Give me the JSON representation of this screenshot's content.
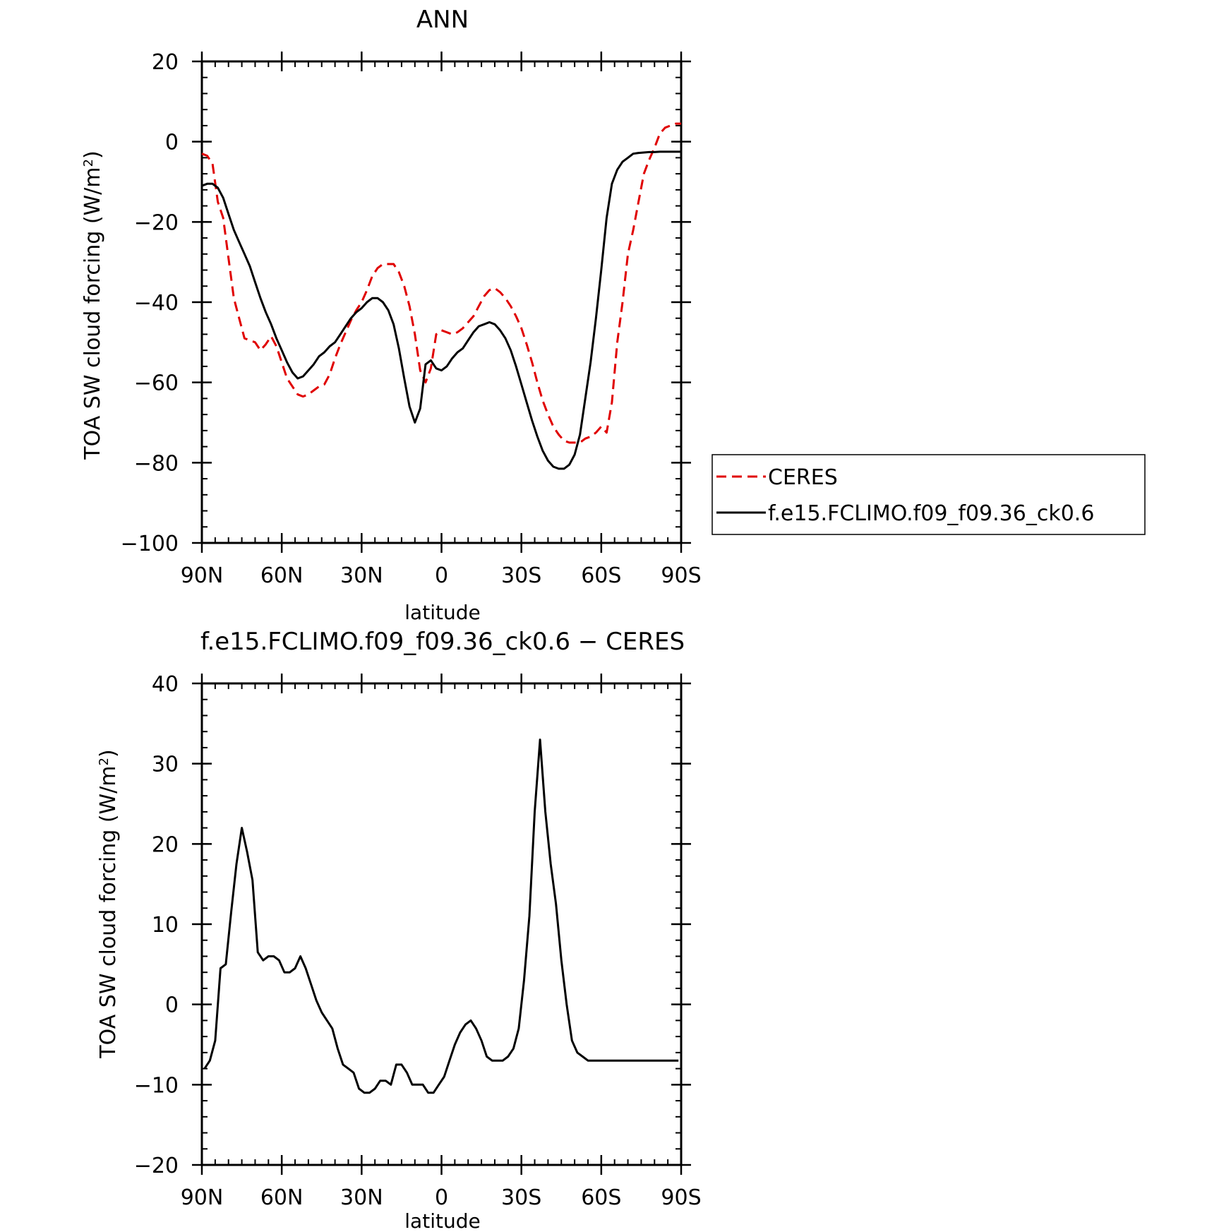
{
  "colors": {
    "ceres": "#e00000",
    "model": "#000000",
    "axis": "#000000"
  },
  "chart_data": [
    {
      "type": "line",
      "title": "ANN",
      "xlabel": "latitude",
      "ylabel": "TOA SW cloud forcing (W/m",
      "ylabel_sup": "2",
      "ylabel_end": ")",
      "xlim": [
        90,
        -90
      ],
      "ylim": [
        -100,
        20
      ],
      "xticks": [
        90,
        60,
        30,
        0,
        -30,
        -60,
        -90
      ],
      "xtick_labels": [
        "90N",
        "60N",
        "30N",
        "0",
        "30S",
        "60S",
        "90S"
      ],
      "yticks": [
        -100,
        -80,
        -60,
        -40,
        -20,
        0,
        20
      ],
      "ytick_labels": [
        "−100",
        "−80",
        "−60",
        "−40",
        "−20",
        "0",
        "20"
      ],
      "legend_position": "right",
      "series": [
        {
          "name": "CERES",
          "style": "dashed",
          "color": "#e00000",
          "x": [
            90,
            88,
            86,
            84,
            82,
            80,
            78,
            76,
            74,
            72,
            70,
            68,
            66,
            64,
            62,
            60,
            58,
            56,
            54,
            52,
            50,
            48,
            46,
            44,
            42,
            40,
            38,
            36,
            34,
            32,
            30,
            28,
            26,
            24,
            22,
            20,
            18,
            16,
            14,
            12,
            10,
            8,
            6,
            4,
            2,
            0,
            -2,
            -4,
            -6,
            -8,
            -10,
            -12,
            -14,
            -16,
            -18,
            -20,
            -22,
            -24,
            -26,
            -28,
            -30,
            -32,
            -34,
            -36,
            -38,
            -40,
            -42,
            -44,
            -46,
            -48,
            -50,
            -52,
            -54,
            -56,
            -58,
            -60,
            -62,
            -64,
            -66,
            -68,
            -70,
            -72,
            -74,
            -76,
            -78,
            -80,
            -82,
            -84,
            -86,
            -88,
            -90
          ],
          "values": [
            -3,
            -3.5,
            -5.5,
            -15,
            -19,
            -29,
            -39,
            -44,
            -49,
            -49.5,
            -50,
            -52,
            -50.5,
            -48.5,
            -51,
            -55,
            -59,
            -61,
            -63,
            -63.5,
            -63,
            -62,
            -61,
            -60.5,
            -58,
            -54,
            -50.5,
            -47.5,
            -44.5,
            -42,
            -40,
            -37,
            -33.5,
            -31.5,
            -30.5,
            -30.5,
            -30.5,
            -32.5,
            -36,
            -41,
            -48,
            -57,
            -60,
            -56.5,
            -48,
            -47,
            -47.5,
            -48,
            -47.5,
            -46.5,
            -45,
            -43.5,
            -41,
            -38.5,
            -37,
            -36.5,
            -37.5,
            -39,
            -41,
            -43.5,
            -46.5,
            -50.5,
            -55,
            -60,
            -64.5,
            -68,
            -71,
            -73,
            -74.5,
            -75,
            -75,
            -75,
            -74,
            -73.5,
            -72.5,
            -71,
            -72.5,
            -65,
            -50,
            -40,
            -28,
            -22,
            -15,
            -8,
            -4.5,
            -1.5,
            2,
            3.5,
            4,
            4.5,
            4.5
          ]
        },
        {
          "name": "f.e15.FCLIMO.f09_f09.36_ck0.6",
          "style": "solid",
          "color": "#000000",
          "x": [
            90,
            88,
            86,
            84,
            82,
            80,
            78,
            76,
            74,
            72,
            70,
            68,
            66,
            64,
            62,
            60,
            58,
            56,
            54,
            52,
            50,
            48,
            46,
            44,
            42,
            40,
            38,
            36,
            34,
            32,
            30,
            28,
            26,
            24,
            22,
            20,
            18,
            16,
            14,
            12,
            10,
            8,
            6,
            4,
            2,
            0,
            -2,
            -4,
            -6,
            -8,
            -10,
            -12,
            -14,
            -16,
            -18,
            -20,
            -22,
            -24,
            -26,
            -28,
            -30,
            -32,
            -34,
            -36,
            -38,
            -40,
            -42,
            -44,
            -46,
            -48,
            -50,
            -52,
            -54,
            -56,
            -58,
            -60,
            -62,
            -64,
            -66,
            -68,
            -70,
            -72,
            -74,
            -76,
            -78,
            -80,
            -82,
            -84,
            -86,
            -88,
            -90
          ],
          "values": [
            -11,
            -10.5,
            -10.5,
            -11.5,
            -14,
            -18,
            -22,
            -25,
            -28,
            -31,
            -35,
            -39,
            -42.5,
            -45.5,
            -49,
            -52,
            -55,
            -57.5,
            -59,
            -58.5,
            -57,
            -55.5,
            -53.5,
            -52.5,
            -51,
            -50,
            -48,
            -46,
            -44,
            -42.5,
            -41.5,
            -40,
            -39,
            -39,
            -40,
            -42,
            -45.5,
            -51.5,
            -59,
            -66,
            -70,
            -66.5,
            -55.5,
            -54.5,
            -56.5,
            -57,
            -56,
            -54,
            -52.5,
            -51.5,
            -49.5,
            -47.5,
            -46,
            -45.5,
            -45,
            -45.5,
            -47,
            -49,
            -52,
            -56,
            -60.5,
            -65,
            -69.5,
            -73.5,
            -77,
            -79.5,
            -81,
            -81.5,
            -81.5,
            -80.5,
            -78,
            -73,
            -64,
            -55,
            -44,
            -32,
            -19,
            -10.5,
            -7,
            -5,
            -4,
            -3,
            -2.8,
            -2.7,
            -2.6,
            -2.6,
            -2.5,
            -2.5,
            -2.5,
            -2.5,
            -2.5
          ]
        }
      ]
    },
    {
      "type": "line",
      "title": "f.e15.FCLIMO.f09_f09.36_ck0.6 − CERES",
      "xlabel": "latitude",
      "ylabel": "TOA SW cloud forcing (W/m",
      "ylabel_sup": "2",
      "ylabel_end": ")",
      "xlim": [
        90,
        -90
      ],
      "ylim": [
        -20,
        40
      ],
      "xticks": [
        90,
        60,
        30,
        0,
        -30,
        -60,
        -90
      ],
      "xtick_labels": [
        "90N",
        "60N",
        "30N",
        "0",
        "30S",
        "60S",
        "90S"
      ],
      "yticks": [
        -20,
        -10,
        0,
        10,
        20,
        30,
        40
      ],
      "ytick_labels": [
        "−20",
        "−10",
        "0",
        "10",
        "20",
        "30",
        "40"
      ],
      "series": [
        {
          "style": "solid",
          "color": "#000000",
          "x": [
            89,
            87,
            85,
            83,
            81,
            79,
            77,
            75,
            73,
            71,
            69,
            67,
            65,
            63,
            61,
            59,
            57,
            55,
            53,
            51,
            49,
            47,
            45,
            43,
            41,
            39,
            37,
            35,
            33,
            31,
            29,
            27,
            25,
            23,
            21,
            19,
            17,
            15,
            13,
            11,
            9,
            7,
            5,
            3,
            1,
            -1,
            -3,
            -5,
            -7,
            -9,
            -11,
            -13,
            -15,
            -17,
            -19,
            -21,
            -23,
            -25,
            -27,
            -29,
            -31,
            -33,
            -35,
            -37,
            -39,
            -41,
            -43,
            -45,
            -47,
            -49,
            -51,
            -53,
            -55,
            -57,
            -59,
            -61,
            -63,
            -65,
            -67,
            -69,
            -71,
            -73,
            -75,
            -77,
            -79,
            -81,
            -83,
            -85,
            -87,
            -89
          ],
          "values": [
            -8,
            -7,
            -4.5,
            4.5,
            5,
            11.5,
            17.5,
            22,
            19,
            15.5,
            6.5,
            5.5,
            6,
            6,
            5.5,
            4,
            4,
            4.5,
            6,
            4.5,
            2.5,
            0.5,
            -1,
            -2,
            -3,
            -5.5,
            -7.5,
            -8,
            -8.5,
            -10.5,
            -11,
            -11,
            -10.5,
            -9.5,
            -9.5,
            -10,
            -7.5,
            -7.5,
            -8.5,
            -10,
            -10,
            -10,
            -11,
            -11,
            -10,
            -9,
            -7,
            -5,
            -3.5,
            -2.5,
            -2,
            -3,
            -4.5,
            -6.5,
            -7,
            -7,
            -7,
            -6.5,
            -5.5,
            -3,
            3,
            11,
            24,
            33,
            24,
            17.5,
            12.5,
            5.5,
            0,
            -4.5,
            -6,
            -6.5,
            -7,
            -7,
            -7,
            -7,
            -7,
            -7,
            -7,
            -7,
            -7,
            -7,
            -7,
            -7,
            -7,
            -7,
            -7,
            -7,
            -7,
            -7
          ]
        }
      ]
    }
  ]
}
